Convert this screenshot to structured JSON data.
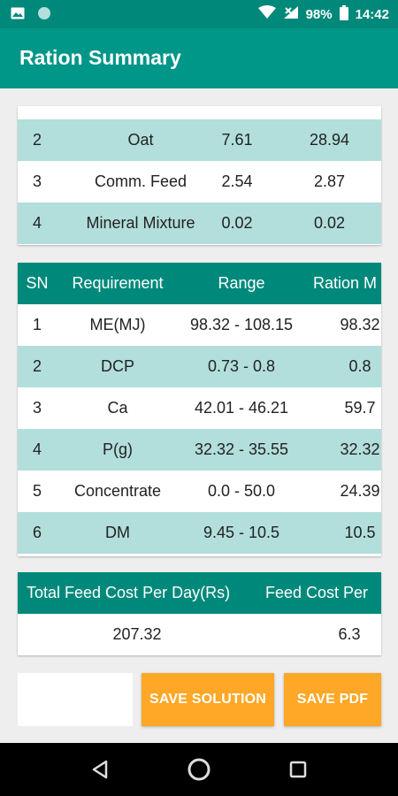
{
  "status_bar": {
    "battery": "98%",
    "time": "14:42"
  },
  "app_bar": {
    "title": "Ration Summary"
  },
  "feed_table": {
    "rows": [
      {
        "sn": "2",
        "name": "Oat",
        "a": "7.61",
        "b": "28.94"
      },
      {
        "sn": "3",
        "name": "Comm. Feed",
        "a": "2.54",
        "b": "2.87"
      },
      {
        "sn": "4",
        "name": "Mineral Mixture",
        "a": "0.02",
        "b": "0.02"
      }
    ]
  },
  "requirement_table": {
    "headers": {
      "sn": "SN",
      "requirement": "Requirement",
      "range": "Range",
      "ration": "Ration M"
    },
    "rows": [
      {
        "sn": "1",
        "name": "ME(MJ)",
        "range": "98.32 - 108.15",
        "ration": "98.32"
      },
      {
        "sn": "2",
        "name": "DCP",
        "range": "0.73 - 0.8",
        "ration": "0.8"
      },
      {
        "sn": "3",
        "name": "Ca",
        "range": "42.01 - 46.21",
        "ration": "59.7"
      },
      {
        "sn": "4",
        "name": "P(g)",
        "range": "32.32 - 35.55",
        "ration": "32.32"
      },
      {
        "sn": "5",
        "name": "Concentrate",
        "range": "0.0 - 50.0",
        "ration": "24.39"
      },
      {
        "sn": "6",
        "name": "DM",
        "range": "9.45 - 10.5",
        "ration": "10.5"
      }
    ]
  },
  "cost_table": {
    "headers": {
      "total": "Total Feed Cost Per Day(Rs)",
      "per": "Feed Cost Per"
    },
    "values": {
      "total": "207.32",
      "per": "6.3"
    }
  },
  "actions": {
    "save_solution": "SAVE SOLUTION",
    "save_pdf": "SAVE PDF"
  },
  "colors": {
    "primary": "#009688",
    "primary_dark": "#00897b",
    "row_teal": "#b2dfdb",
    "accent": "#ffa726"
  }
}
